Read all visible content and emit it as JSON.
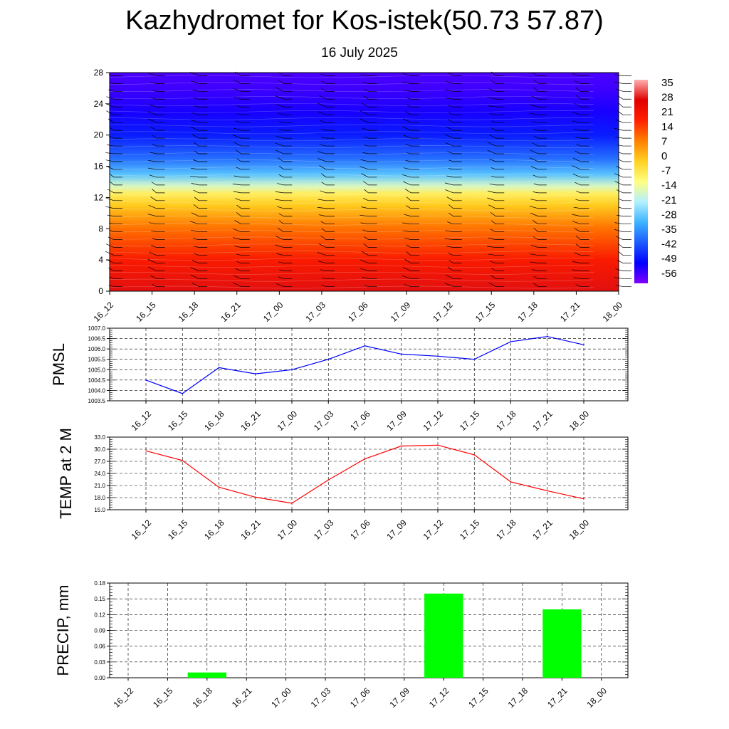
{
  "title": "Kazhydromet for Kos-istek(50.73 57.87)",
  "subtitle": "16 July 2025",
  "chart_data": [
    {
      "type": "heatmap",
      "panel": "cross-section",
      "x_ticks": [
        "16_12",
        "16_15",
        "16_18",
        "16_21",
        "17_00",
        "17_03",
        "17_06",
        "17_09",
        "17_12",
        "17_15",
        "17_18",
        "17_21",
        "18_00"
      ],
      "y_ticks": [
        0,
        4,
        8,
        12,
        16,
        20,
        24,
        28
      ],
      "ylim": [
        0,
        28
      ],
      "colorbar_labels": [
        35,
        28,
        21,
        14,
        7,
        0,
        -7,
        -14,
        -21,
        -28,
        -35,
        -42,
        -49,
        -56
      ],
      "colormap": [
        "#7f00ff",
        "#0000ff",
        "#1e5aff",
        "#3cb4ff",
        "#b4f0ff",
        "#ffff80",
        "#ffd020",
        "#ff8000",
        "#ff2000",
        "#e00000",
        "#ffb0b0"
      ],
      "temperature_profile": [
        {
          "level": 0,
          "value": 30
        },
        {
          "level": 4,
          "value": 21
        },
        {
          "level": 8,
          "value": 11
        },
        {
          "level": 11,
          "value": 0
        },
        {
          "level": 12.5,
          "value": -7
        },
        {
          "level": 13.5,
          "value": -16
        },
        {
          "level": 15,
          "value": -28
        },
        {
          "level": 17,
          "value": -38
        },
        {
          "level": 20,
          "value": -47
        },
        {
          "level": 23,
          "value": -52
        },
        {
          "level": 26,
          "value": -55
        },
        {
          "level": 28,
          "value": -56
        }
      ],
      "wind_barbs": true,
      "grid": false
    },
    {
      "type": "line",
      "ylabel": "PMSL",
      "categories": [
        "16_12",
        "16_15",
        "16_18",
        "16_21",
        "17_00",
        "17_03",
        "17_06",
        "17_09",
        "17_12",
        "17_15",
        "17_18",
        "17_21",
        "18_00"
      ],
      "values": [
        1004.5,
        1003.85,
        1005.1,
        1004.8,
        1005.0,
        1005.5,
        1006.15,
        1005.75,
        1005.65,
        1005.5,
        1006.35,
        1006.6,
        1006.2
      ],
      "y_ticks": [
        "1003.5",
        "1004.0",
        "1004.5",
        "1005.0",
        "1005.5",
        "1006.0",
        "1006.5",
        "1007.0"
      ],
      "ylim": [
        1003.5,
        1007.0
      ],
      "color": "#0000ff",
      "grid": true
    },
    {
      "type": "line",
      "ylabel": "TEMP at 2 M",
      "categories": [
        "16_12",
        "16_15",
        "16_18",
        "16_21",
        "17_00",
        "17_03",
        "17_06",
        "17_09",
        "17_12",
        "17_15",
        "17_18",
        "17_21",
        "18_00"
      ],
      "values": [
        29.6,
        27.2,
        20.6,
        18.1,
        16.6,
        22.4,
        27.6,
        30.8,
        31.0,
        28.6,
        21.9,
        19.7,
        17.7
      ],
      "y_ticks": [
        "15.0",
        "18.0",
        "21.0",
        "24.0",
        "27.0",
        "30.0",
        "33.0"
      ],
      "ylim": [
        15,
        33
      ],
      "color": "#ff0000",
      "grid": true
    },
    {
      "type": "bar",
      "ylabel": "PRECIP, mm",
      "categories": [
        "16_12",
        "16_15",
        "16_18",
        "16_21",
        "17_00",
        "17_03",
        "17_06",
        "17_09",
        "17_12",
        "17_15",
        "17_18",
        "17_21",
        "18_00"
      ],
      "values": [
        0,
        0,
        0.01,
        0,
        0,
        0,
        0,
        0,
        0.16,
        0,
        0,
        0.13,
        0
      ],
      "y_ticks": [
        "0.00",
        "0.03",
        "0.06",
        "0.09",
        "0.12",
        "0.15",
        "0.18"
      ],
      "ylim": [
        0,
        0.18
      ],
      "color": "#00ff00",
      "grid": true
    }
  ]
}
